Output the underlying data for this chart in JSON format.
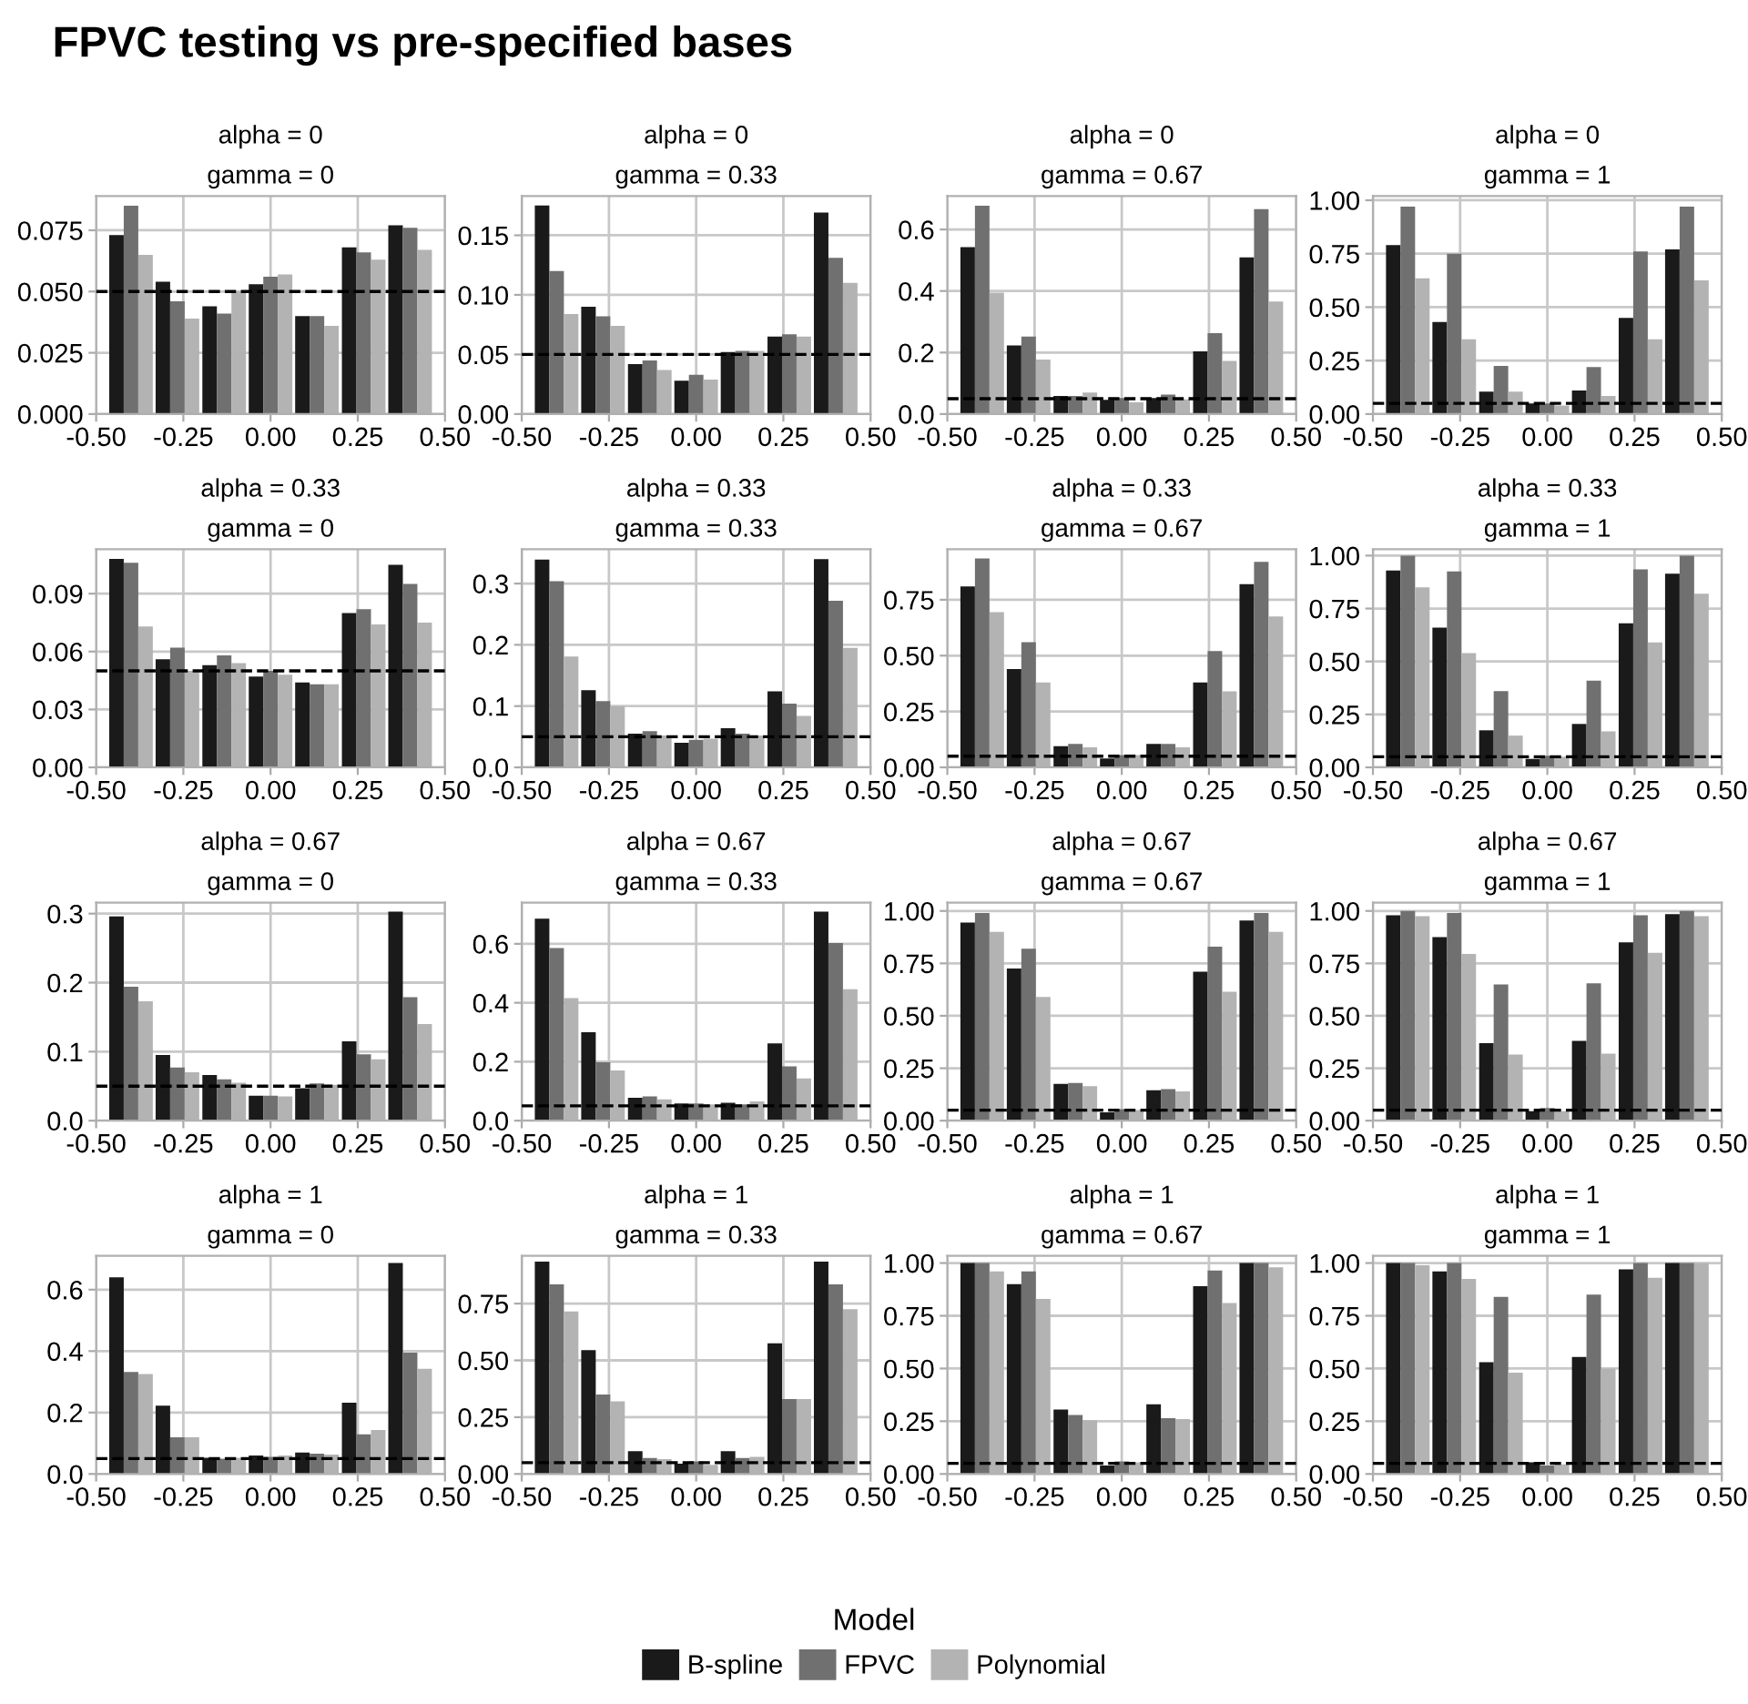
{
  "chart_data": [
    {
      "type": "bar",
      "title": "alpha = 0",
      "subtitle": "gamma = 0",
      "legend": "bottom",
      "legend_title": "Model",
      "annotations": [
        "FPVC testing vs pre-specified bases"
      ],
      "x": [
        -0.4,
        -0.267,
        -0.133,
        0,
        0.133,
        0.267,
        0.4
      ],
      "xlim": [
        -0.5,
        0.5
      ],
      "xticks": [
        {
          "value": -0.5,
          "label": "-0.50"
        },
        {
          "value": -0.25,
          "label": "-0.25"
        },
        {
          "value": 0,
          "label": "0.00"
        },
        {
          "value": 0.25,
          "label": "0.25"
        },
        {
          "value": 0.5,
          "label": "0.50"
        }
      ],
      "ylim": [
        0,
        0.089
      ],
      "yticks": [
        {
          "value": 0,
          "label": "0.000"
        },
        {
          "value": 0.025,
          "label": "0.025"
        },
        {
          "value": 0.05,
          "label": "0.050"
        },
        {
          "value": 0.075,
          "label": "0.075"
        }
      ],
      "grid": true,
      "ref_lines": [
        {
          "axis": "y",
          "value": 0.05,
          "color": "#000000",
          "line_style": "dashed"
        }
      ],
      "series": [
        {
          "name": "B-spline",
          "color": "#1a1a1a",
          "values": [
            0.073,
            0.054,
            0.044,
            0.053,
            0.04,
            0.068,
            0.077
          ]
        },
        {
          "name": "FPVC",
          "color": "#707070",
          "values": [
            0.085,
            0.046,
            0.041,
            0.056,
            0.04,
            0.066,
            0.076
          ]
        },
        {
          "name": "Polynomial",
          "color": "#b3b3b3",
          "values": [
            0.065,
            0.039,
            0.05,
            0.057,
            0.036,
            0.063,
            0.067
          ]
        }
      ]
    },
    {
      "type": "bar",
      "title": "alpha = 0",
      "subtitle": "gamma = 0.33",
      "x": [
        -0.4,
        -0.267,
        -0.133,
        0,
        0.133,
        0.267,
        0.4
      ],
      "xlim": [
        -0.5,
        0.5
      ],
      "xticks": [
        {
          "value": -0.5,
          "label": "-0.50"
        },
        {
          "value": -0.25,
          "label": "-0.25"
        },
        {
          "value": 0,
          "label": "0.00"
        },
        {
          "value": 0.25,
          "label": "0.25"
        },
        {
          "value": 0.5,
          "label": "0.50"
        }
      ],
      "ylim": [
        0,
        0.183
      ],
      "yticks": [
        {
          "value": 0,
          "label": "0.00"
        },
        {
          "value": 0.05,
          "label": "0.05"
        },
        {
          "value": 0.1,
          "label": "0.10"
        },
        {
          "value": 0.15,
          "label": "0.15"
        }
      ],
      "grid": true,
      "ref_lines": [
        {
          "axis": "y",
          "value": 0.05,
          "color": "#000000",
          "line_style": "dashed"
        }
      ],
      "series": [
        {
          "color": "#1a1a1a",
          "values": [
            0.175,
            0.09,
            0.042,
            0.028,
            0.052,
            0.065,
            0.169
          ]
        },
        {
          "color": "#707070",
          "values": [
            0.12,
            0.082,
            0.045,
            0.033,
            0.053,
            0.067,
            0.131
          ]
        },
        {
          "color": "#b3b3b3",
          "values": [
            0.084,
            0.074,
            0.037,
            0.029,
            0.053,
            0.065,
            0.11
          ]
        }
      ]
    },
    {
      "type": "bar",
      "title": "alpha = 0",
      "subtitle": "gamma = 0.67",
      "x": [
        -0.4,
        -0.267,
        -0.133,
        0,
        0.133,
        0.267,
        0.4
      ],
      "xlim": [
        -0.5,
        0.5
      ],
      "xticks": [
        {
          "value": -0.5,
          "label": "-0.50"
        },
        {
          "value": -0.25,
          "label": "-0.25"
        },
        {
          "value": 0,
          "label": "0.00"
        },
        {
          "value": 0.25,
          "label": "0.25"
        },
        {
          "value": 0.5,
          "label": "0.50"
        }
      ],
      "ylim": [
        0,
        0.709
      ],
      "yticks": [
        {
          "value": 0,
          "label": "0.0"
        },
        {
          "value": 0.2,
          "label": "0.2"
        },
        {
          "value": 0.4,
          "label": "0.4"
        },
        {
          "value": 0.6,
          "label": "0.6"
        }
      ],
      "grid": true,
      "ref_lines": [
        {
          "axis": "y",
          "value": 0.05,
          "color": "#000000",
          "line_style": "dashed"
        }
      ],
      "series": [
        {
          "color": "#1a1a1a",
          "values": [
            0.543,
            0.223,
            0.059,
            0.046,
            0.052,
            0.204,
            0.509
          ]
        },
        {
          "color": "#707070",
          "values": [
            0.677,
            0.252,
            0.059,
            0.052,
            0.063,
            0.263,
            0.666
          ]
        },
        {
          "color": "#b3b3b3",
          "values": [
            0.395,
            0.177,
            0.07,
            0.038,
            0.048,
            0.173,
            0.366
          ]
        }
      ]
    },
    {
      "type": "bar",
      "title": "alpha = 0",
      "subtitle": "gamma = 1",
      "x": [
        -0.4,
        -0.267,
        -0.133,
        0,
        0.133,
        0.267,
        0.4
      ],
      "xlim": [
        -0.5,
        0.5
      ],
      "xticks": [
        {
          "value": -0.5,
          "label": "-0.50"
        },
        {
          "value": -0.25,
          "label": "-0.25"
        },
        {
          "value": 0,
          "label": "0.00"
        },
        {
          "value": 0.25,
          "label": "0.25"
        },
        {
          "value": 0.5,
          "label": "0.50"
        }
      ],
      "ylim": [
        0,
        1.02
      ],
      "yticks": [
        {
          "value": 0,
          "label": "0.00"
        },
        {
          "value": 0.25,
          "label": "0.25"
        },
        {
          "value": 0.5,
          "label": "0.50"
        },
        {
          "value": 0.75,
          "label": "0.75"
        },
        {
          "value": 1,
          "label": "1.00"
        }
      ],
      "grid": true,
      "ref_lines": [
        {
          "axis": "y",
          "value": 0.05,
          "color": "#000000",
          "line_style": "dashed"
        }
      ],
      "series": [
        {
          "color": "#1a1a1a",
          "values": [
            0.79,
            0.43,
            0.105,
            0.05,
            0.11,
            0.45,
            0.77
          ]
        },
        {
          "color": "#707070",
          "values": [
            0.97,
            0.75,
            0.225,
            0.05,
            0.22,
            0.76,
            0.97
          ]
        },
        {
          "color": "#b3b3b3",
          "values": [
            0.635,
            0.35,
            0.105,
            0.04,
            0.085,
            0.35,
            0.625
          ]
        }
      ]
    },
    {
      "type": "bar",
      "title": "alpha = 0.33",
      "subtitle": "gamma = 0",
      "x": [
        -0.4,
        -0.267,
        -0.133,
        0,
        0.133,
        0.267,
        0.4
      ],
      "xlim": [
        -0.5,
        0.5
      ],
      "xticks": [
        {
          "value": -0.5,
          "label": "-0.50"
        },
        {
          "value": -0.25,
          "label": "-0.25"
        },
        {
          "value": 0,
          "label": "0.00"
        },
        {
          "value": 0.25,
          "label": "0.25"
        },
        {
          "value": 0.5,
          "label": "0.50"
        }
      ],
      "ylim": [
        0,
        0.113
      ],
      "yticks": [
        {
          "value": 0,
          "label": "0.00"
        },
        {
          "value": 0.03,
          "label": "0.03"
        },
        {
          "value": 0.06,
          "label": "0.06"
        },
        {
          "value": 0.09,
          "label": "0.09"
        }
      ],
      "grid": true,
      "ref_lines": [
        {
          "axis": "y",
          "value": 0.05,
          "color": "#000000",
          "line_style": "dashed"
        }
      ],
      "series": [
        {
          "color": "#1a1a1a",
          "values": [
            0.108,
            0.056,
            0.053,
            0.047,
            0.044,
            0.08,
            0.105
          ]
        },
        {
          "color": "#707070",
          "values": [
            0.106,
            0.062,
            0.058,
            0.05,
            0.043,
            0.082,
            0.095
          ]
        },
        {
          "color": "#b3b3b3",
          "values": [
            0.073,
            0.05,
            0.054,
            0.048,
            0.043,
            0.074,
            0.075
          ]
        }
      ]
    },
    {
      "type": "bar",
      "title": "alpha = 0.33",
      "subtitle": "gamma = 0.33",
      "x": [
        -0.4,
        -0.267,
        -0.133,
        0,
        0.133,
        0.267,
        0.4
      ],
      "xlim": [
        -0.5,
        0.5
      ],
      "xticks": [
        {
          "value": -0.5,
          "label": "-0.50"
        },
        {
          "value": -0.25,
          "label": "-0.25"
        },
        {
          "value": 0,
          "label": "0.00"
        },
        {
          "value": 0.25,
          "label": "0.25"
        },
        {
          "value": 0.5,
          "label": "0.50"
        }
      ],
      "ylim": [
        0,
        0.356
      ],
      "yticks": [
        {
          "value": 0,
          "label": "0.0"
        },
        {
          "value": 0.1,
          "label": "0.1"
        },
        {
          "value": 0.2,
          "label": "0.2"
        },
        {
          "value": 0.3,
          "label": "0.3"
        }
      ],
      "grid": true,
      "ref_lines": [
        {
          "axis": "y",
          "value": 0.05,
          "color": "#000000",
          "line_style": "dashed"
        }
      ],
      "series": [
        {
          "color": "#1a1a1a",
          "values": [
            0.339,
            0.126,
            0.055,
            0.04,
            0.064,
            0.124,
            0.34
          ]
        },
        {
          "color": "#707070",
          "values": [
            0.304,
            0.108,
            0.059,
            0.045,
            0.055,
            0.104,
            0.272
          ]
        },
        {
          "color": "#b3b3b3",
          "values": [
            0.181,
            0.1,
            0.052,
            0.047,
            0.052,
            0.084,
            0.195
          ]
        }
      ]
    },
    {
      "type": "bar",
      "title": "alpha = 0.33",
      "subtitle": "gamma = 0.67",
      "x": [
        -0.4,
        -0.267,
        -0.133,
        0,
        0.133,
        0.267,
        0.4
      ],
      "xlim": [
        -0.5,
        0.5
      ],
      "xticks": [
        {
          "value": -0.5,
          "label": "-0.50"
        },
        {
          "value": -0.25,
          "label": "-0.25"
        },
        {
          "value": 0,
          "label": "0.00"
        },
        {
          "value": 0.25,
          "label": "0.25"
        },
        {
          "value": 0.5,
          "label": "0.50"
        }
      ],
      "ylim": [
        0,
        0.976
      ],
      "yticks": [
        {
          "value": 0,
          "label": "0.00"
        },
        {
          "value": 0.25,
          "label": "0.25"
        },
        {
          "value": 0.5,
          "label": "0.50"
        },
        {
          "value": 0.75,
          "label": "0.75"
        }
      ],
      "grid": true,
      "ref_lines": [
        {
          "axis": "y",
          "value": 0.05,
          "color": "#000000",
          "line_style": "dashed"
        }
      ],
      "series": [
        {
          "color": "#1a1a1a",
          "values": [
            0.81,
            0.44,
            0.095,
            0.04,
            0.105,
            0.38,
            0.82
          ]
        },
        {
          "color": "#707070",
          "values": [
            0.935,
            0.56,
            0.105,
            0.055,
            0.105,
            0.52,
            0.92
          ]
        },
        {
          "color": "#b3b3b3",
          "values": [
            0.695,
            0.38,
            0.09,
            0.055,
            0.09,
            0.34,
            0.675
          ]
        }
      ]
    },
    {
      "type": "bar",
      "title": "alpha = 0.33",
      "subtitle": "gamma = 1",
      "x": [
        -0.4,
        -0.267,
        -0.133,
        0,
        0.133,
        0.267,
        0.4
      ],
      "xlim": [
        -0.5,
        0.5
      ],
      "xticks": [
        {
          "value": -0.5,
          "label": "-0.50"
        },
        {
          "value": -0.25,
          "label": "-0.25"
        },
        {
          "value": 0,
          "label": "0.00"
        },
        {
          "value": 0.25,
          "label": "0.25"
        },
        {
          "value": 0.5,
          "label": "0.50"
        }
      ],
      "ylim": [
        0,
        1.03
      ],
      "yticks": [
        {
          "value": 0,
          "label": "0.00"
        },
        {
          "value": 0.25,
          "label": "0.25"
        },
        {
          "value": 0.5,
          "label": "0.50"
        },
        {
          "value": 0.75,
          "label": "0.75"
        },
        {
          "value": 1,
          "label": "1.00"
        }
      ],
      "grid": true,
      "ref_lines": [
        {
          "axis": "y",
          "value": 0.05,
          "color": "#000000",
          "line_style": "dashed"
        }
      ],
      "series": [
        {
          "color": "#1a1a1a",
          "values": [
            0.93,
            0.66,
            0.175,
            0.04,
            0.205,
            0.68,
            0.915
          ]
        },
        {
          "color": "#707070",
          "values": [
            1.0,
            0.925,
            0.36,
            0.055,
            0.41,
            0.935,
            1.0
          ]
        },
        {
          "color": "#b3b3b3",
          "values": [
            0.85,
            0.54,
            0.15,
            0.05,
            0.17,
            0.59,
            0.82
          ]
        }
      ]
    },
    {
      "type": "bar",
      "title": "alpha = 0.67",
      "subtitle": "gamma = 0",
      "x": [
        -0.4,
        -0.267,
        -0.133,
        0,
        0.133,
        0.267,
        0.4
      ],
      "xlim": [
        -0.5,
        0.5
      ],
      "xticks": [
        {
          "value": -0.5,
          "label": "-0.50"
        },
        {
          "value": -0.25,
          "label": "-0.25"
        },
        {
          "value": 0,
          "label": "0.00"
        },
        {
          "value": 0.25,
          "label": "0.25"
        },
        {
          "value": 0.5,
          "label": "0.50"
        }
      ],
      "ylim": [
        0,
        0.316
      ],
      "yticks": [
        {
          "value": 0,
          "label": "0.0"
        },
        {
          "value": 0.1,
          "label": "0.1"
        },
        {
          "value": 0.2,
          "label": "0.2"
        },
        {
          "value": 0.3,
          "label": "0.3"
        }
      ],
      "grid": true,
      "ref_lines": [
        {
          "axis": "y",
          "value": 0.05,
          "color": "#000000",
          "line_style": "dashed"
        }
      ],
      "series": [
        {
          "color": "#1a1a1a",
          "values": [
            0.296,
            0.095,
            0.066,
            0.036,
            0.047,
            0.115,
            0.303
          ]
        },
        {
          "color": "#707070",
          "values": [
            0.194,
            0.077,
            0.06,
            0.036,
            0.054,
            0.096,
            0.179
          ]
        },
        {
          "color": "#b3b3b3",
          "values": [
            0.173,
            0.07,
            0.055,
            0.035,
            0.052,
            0.089,
            0.14
          ]
        }
      ]
    },
    {
      "type": "bar",
      "title": "alpha = 0.67",
      "subtitle": "gamma = 0.33",
      "x": [
        -0.4,
        -0.267,
        -0.133,
        0,
        0.133,
        0.267,
        0.4
      ],
      "xlim": [
        -0.5,
        0.5
      ],
      "xticks": [
        {
          "value": -0.5,
          "label": "-0.50"
        },
        {
          "value": -0.25,
          "label": "-0.25"
        },
        {
          "value": 0,
          "label": "0.00"
        },
        {
          "value": 0.25,
          "label": "0.25"
        },
        {
          "value": 0.5,
          "label": "0.50"
        }
      ],
      "ylim": [
        0,
        0.74
      ],
      "yticks": [
        {
          "value": 0,
          "label": "0.0"
        },
        {
          "value": 0.2,
          "label": "0.2"
        },
        {
          "value": 0.4,
          "label": "0.4"
        },
        {
          "value": 0.6,
          "label": "0.6"
        }
      ],
      "grid": true,
      "ref_lines": [
        {
          "axis": "y",
          "value": 0.05,
          "color": "#000000",
          "line_style": "dashed"
        }
      ],
      "series": [
        {
          "color": "#1a1a1a",
          "values": [
            0.685,
            0.3,
            0.078,
            0.058,
            0.061,
            0.262,
            0.709
          ]
        },
        {
          "color": "#707070",
          "values": [
            0.586,
            0.198,
            0.082,
            0.058,
            0.055,
            0.184,
            0.603
          ]
        },
        {
          "color": "#b3b3b3",
          "values": [
            0.416,
            0.17,
            0.072,
            0.055,
            0.065,
            0.143,
            0.446
          ]
        }
      ]
    },
    {
      "type": "bar",
      "title": "alpha = 0.67",
      "subtitle": "gamma = 0.67",
      "x": [
        -0.4,
        -0.267,
        -0.133,
        0,
        0.133,
        0.267,
        0.4
      ],
      "xlim": [
        -0.5,
        0.5
      ],
      "xticks": [
        {
          "value": -0.5,
          "label": "-0.50"
        },
        {
          "value": -0.25,
          "label": "-0.25"
        },
        {
          "value": 0,
          "label": "0.00"
        },
        {
          "value": 0.25,
          "label": "0.25"
        },
        {
          "value": 0.5,
          "label": "0.50"
        }
      ],
      "ylim": [
        0,
        1.04
      ],
      "yticks": [
        {
          "value": 0,
          "label": "0.00"
        },
        {
          "value": 0.25,
          "label": "0.25"
        },
        {
          "value": 0.5,
          "label": "0.50"
        },
        {
          "value": 0.75,
          "label": "0.75"
        },
        {
          "value": 1,
          "label": "1.00"
        }
      ],
      "grid": true,
      "ref_lines": [
        {
          "axis": "y",
          "value": 0.05,
          "color": "#000000",
          "line_style": "dashed"
        }
      ],
      "series": [
        {
          "color": "#1a1a1a",
          "values": [
            0.945,
            0.725,
            0.175,
            0.04,
            0.145,
            0.71,
            0.955
          ]
        },
        {
          "color": "#707070",
          "values": [
            0.99,
            0.82,
            0.18,
            0.055,
            0.15,
            0.83,
            0.99
          ]
        },
        {
          "color": "#b3b3b3",
          "values": [
            0.9,
            0.59,
            0.165,
            0.05,
            0.14,
            0.615,
            0.9
          ]
        }
      ]
    },
    {
      "type": "bar",
      "title": "alpha = 0.67",
      "subtitle": "gamma = 1",
      "x": [
        -0.4,
        -0.267,
        -0.133,
        0,
        0.133,
        0.267,
        0.4
      ],
      "xlim": [
        -0.5,
        0.5
      ],
      "xticks": [
        {
          "value": -0.5,
          "label": "-0.50"
        },
        {
          "value": -0.25,
          "label": "-0.25"
        },
        {
          "value": 0,
          "label": "0.00"
        },
        {
          "value": 0.25,
          "label": "0.25"
        },
        {
          "value": 0.5,
          "label": "0.50"
        }
      ],
      "ylim": [
        0,
        1.04
      ],
      "yticks": [
        {
          "value": 0,
          "label": "0.00"
        },
        {
          "value": 0.25,
          "label": "0.25"
        },
        {
          "value": 0.5,
          "label": "0.50"
        },
        {
          "value": 0.75,
          "label": "0.75"
        },
        {
          "value": 1,
          "label": "1.00"
        }
      ],
      "grid": true,
      "ref_lines": [
        {
          "axis": "y",
          "value": 0.05,
          "color": "#000000",
          "line_style": "dashed"
        }
      ],
      "series": [
        {
          "color": "#1a1a1a",
          "values": [
            0.98,
            0.875,
            0.37,
            0.045,
            0.38,
            0.85,
            0.985
          ]
        },
        {
          "color": "#707070",
          "values": [
            1.0,
            0.99,
            0.65,
            0.06,
            0.655,
            0.98,
            1.0
          ]
        },
        {
          "color": "#b3b3b3",
          "values": [
            0.975,
            0.795,
            0.315,
            0.045,
            0.32,
            0.8,
            0.975
          ]
        }
      ]
    },
    {
      "type": "bar",
      "title": "alpha = 1",
      "subtitle": "gamma = 0",
      "x": [
        -0.4,
        -0.267,
        -0.133,
        0,
        0.133,
        0.267,
        0.4
      ],
      "xlim": [
        -0.5,
        0.5
      ],
      "xticks": [
        {
          "value": -0.5,
          "label": "-0.50"
        },
        {
          "value": -0.25,
          "label": "-0.25"
        },
        {
          "value": 0,
          "label": "0.00"
        },
        {
          "value": 0.25,
          "label": "0.25"
        },
        {
          "value": 0.5,
          "label": "0.50"
        }
      ],
      "ylim": [
        0,
        0.71
      ],
      "yticks": [
        {
          "value": 0,
          "label": "0.0"
        },
        {
          "value": 0.2,
          "label": "0.2"
        },
        {
          "value": 0.4,
          "label": "0.4"
        },
        {
          "value": 0.6,
          "label": "0.6"
        }
      ],
      "grid": true,
      "ref_lines": [
        {
          "axis": "y",
          "value": 0.05,
          "color": "#000000",
          "line_style": "dashed"
        }
      ],
      "series": [
        {
          "color": "#1a1a1a",
          "values": [
            0.64,
            0.222,
            0.053,
            0.06,
            0.07,
            0.232,
            0.687
          ]
        },
        {
          "color": "#707070",
          "values": [
            0.332,
            0.119,
            0.05,
            0.056,
            0.066,
            0.129,
            0.395
          ]
        },
        {
          "color": "#b3b3b3",
          "values": [
            0.325,
            0.119,
            0.053,
            0.06,
            0.063,
            0.143,
            0.342
          ]
        }
      ]
    },
    {
      "type": "bar",
      "title": "alpha = 1",
      "subtitle": "gamma = 0.33",
      "x": [
        -0.4,
        -0.267,
        -0.133,
        0,
        0.133,
        0.267,
        0.4
      ],
      "xlim": [
        -0.5,
        0.5
      ],
      "xticks": [
        {
          "value": -0.5,
          "label": "-0.50"
        },
        {
          "value": -0.25,
          "label": "-0.25"
        },
        {
          "value": 0,
          "label": "0.00"
        },
        {
          "value": 0.25,
          "label": "0.25"
        },
        {
          "value": 0.5,
          "label": "0.50"
        }
      ],
      "ylim": [
        0,
        0.96
      ],
      "yticks": [
        {
          "value": 0,
          "label": "0.00"
        },
        {
          "value": 0.25,
          "label": "0.25"
        },
        {
          "value": 0.5,
          "label": "0.50"
        },
        {
          "value": 0.75,
          "label": "0.75"
        }
      ],
      "grid": true,
      "ref_lines": [
        {
          "axis": "y",
          "value": 0.05,
          "color": "#000000",
          "line_style": "dashed"
        }
      ],
      "series": [
        {
          "color": "#1a1a1a",
          "values": [
            0.935,
            0.545,
            0.1,
            0.045,
            0.1,
            0.575,
            0.935
          ]
        },
        {
          "color": "#707070",
          "values": [
            0.835,
            0.35,
            0.07,
            0.055,
            0.07,
            0.33,
            0.835
          ]
        },
        {
          "color": "#b3b3b3",
          "values": [
            0.715,
            0.32,
            0.065,
            0.04,
            0.075,
            0.33,
            0.725
          ]
        }
      ]
    },
    {
      "type": "bar",
      "title": "alpha = 1",
      "subtitle": "gamma = 0.67",
      "x": [
        -0.4,
        -0.267,
        -0.133,
        0,
        0.133,
        0.267,
        0.4
      ],
      "xlim": [
        -0.5,
        0.5
      ],
      "xticks": [
        {
          "value": -0.5,
          "label": "-0.50"
        },
        {
          "value": -0.25,
          "label": "-0.25"
        },
        {
          "value": 0,
          "label": "0.00"
        },
        {
          "value": 0.25,
          "label": "0.25"
        },
        {
          "value": 0.5,
          "label": "0.50"
        }
      ],
      "ylim": [
        0,
        1.034
      ],
      "yticks": [
        {
          "value": 0,
          "label": "0.00"
        },
        {
          "value": 0.25,
          "label": "0.25"
        },
        {
          "value": 0.5,
          "label": "0.50"
        },
        {
          "value": 0.75,
          "label": "0.75"
        },
        {
          "value": 1,
          "label": "1.00"
        }
      ],
      "grid": true,
      "ref_lines": [
        {
          "axis": "y",
          "value": 0.05,
          "color": "#000000",
          "line_style": "dashed"
        }
      ],
      "series": [
        {
          "color": "#1a1a1a",
          "values": [
            1.0,
            0.9,
            0.305,
            0.04,
            0.33,
            0.89,
            1.0
          ]
        },
        {
          "color": "#707070",
          "values": [
            1.0,
            0.96,
            0.28,
            0.06,
            0.265,
            0.965,
            1.0
          ]
        },
        {
          "color": "#b3b3b3",
          "values": [
            0.96,
            0.83,
            0.255,
            0.055,
            0.26,
            0.81,
            0.98
          ]
        }
      ]
    },
    {
      "type": "bar",
      "title": "alpha = 1",
      "subtitle": "gamma = 1",
      "x": [
        -0.4,
        -0.267,
        -0.133,
        0,
        0.133,
        0.267,
        0.4
      ],
      "xlim": [
        -0.5,
        0.5
      ],
      "xticks": [
        {
          "value": -0.5,
          "label": "-0.50"
        },
        {
          "value": -0.25,
          "label": "-0.25"
        },
        {
          "value": 0,
          "label": "0.00"
        },
        {
          "value": 0.25,
          "label": "0.25"
        },
        {
          "value": 0.5,
          "label": "0.50"
        }
      ],
      "ylim": [
        0,
        1.034
      ],
      "yticks": [
        {
          "value": 0,
          "label": "0.00"
        },
        {
          "value": 0.25,
          "label": "0.25"
        },
        {
          "value": 0.5,
          "label": "0.50"
        },
        {
          "value": 0.75,
          "label": "0.75"
        },
        {
          "value": 1,
          "label": "1.00"
        }
      ],
      "grid": true,
      "ref_lines": [
        {
          "axis": "y",
          "value": 0.05,
          "color": "#000000",
          "line_style": "dashed"
        }
      ],
      "series": [
        {
          "color": "#1a1a1a",
          "values": [
            1.0,
            0.96,
            0.53,
            0.055,
            0.555,
            0.97,
            1.0
          ]
        },
        {
          "color": "#707070",
          "values": [
            1.0,
            1.0,
            0.84,
            0.04,
            0.85,
            1.0,
            1.0
          ]
        },
        {
          "color": "#b3b3b3",
          "values": [
            0.99,
            0.925,
            0.48,
            0.045,
            0.5,
            0.93,
            1.0
          ]
        }
      ]
    }
  ]
}
